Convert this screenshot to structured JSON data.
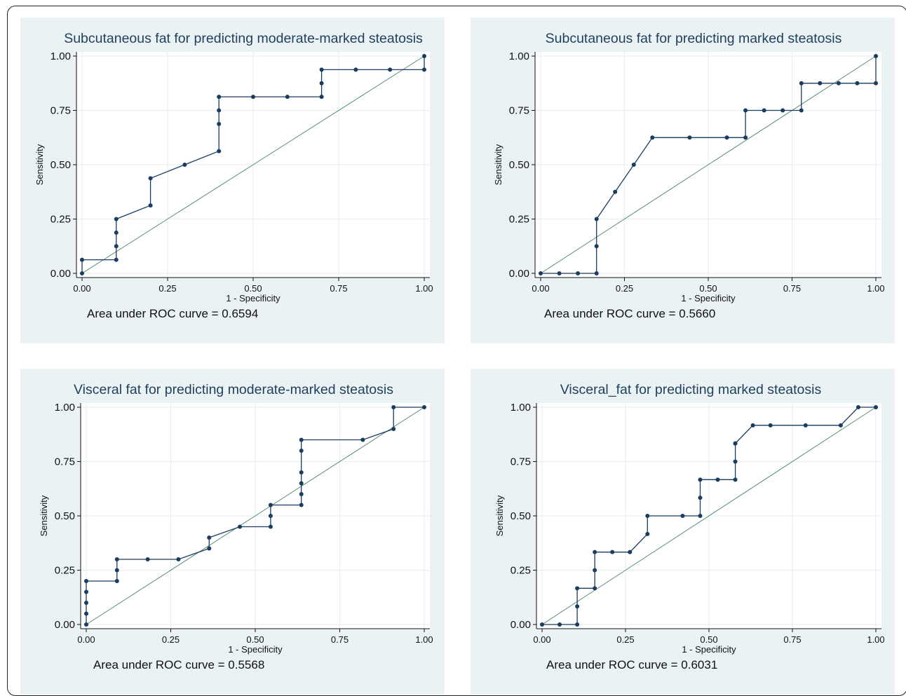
{
  "colors": {
    "panel_bg": "#eaf2f3",
    "plot_bg": "#ffffff",
    "curve": "#1a3c5e",
    "reference_line": "#5a8f74",
    "title": "#1f3f5e",
    "grid": "#e6eef0"
  },
  "chart_data": [
    {
      "type": "line",
      "title": "Subcutaneous fat for predicting moderate-marked steatosis",
      "xlabel": "1 - Specificity",
      "ylabel": "Sensitivity",
      "xlim": [
        0,
        1
      ],
      "ylim": [
        0,
        1
      ],
      "x_ticks": [
        "0.00",
        "0.25",
        "0.50",
        "0.75",
        "1.00"
      ],
      "y_ticks": [
        "0.00",
        "0.25",
        "0.50",
        "0.75",
        "1.00"
      ],
      "grid": true,
      "reference_line": true,
      "note": "Area under ROC curve = 0.6594",
      "series": [
        {
          "x": [
            0,
            0,
            0.1,
            0.1,
            0.1,
            0.1,
            0.2,
            0.2,
            0.3,
            0.4,
            0.4,
            0.4,
            0.4,
            0.5,
            0.6,
            0.7,
            0.7,
            0.7,
            0.8,
            0.9,
            1.0,
            1.0
          ],
          "y": [
            0,
            0.0625,
            0.0625,
            0.125,
            0.1875,
            0.25,
            0.3125,
            0.4375,
            0.5,
            0.5625,
            0.6875,
            0.75,
            0.8125,
            0.8125,
            0.8125,
            0.8125,
            0.875,
            0.9375,
            0.9375,
            0.9375,
            0.9375,
            1.0
          ]
        }
      ]
    },
    {
      "type": "line",
      "title": "Subcutaneous fat for predicting marked steatosis",
      "xlabel": "1 - Specificity",
      "ylabel": "Sensitivity",
      "xlim": [
        0,
        1
      ],
      "ylim": [
        0,
        1
      ],
      "x_ticks": [
        "0.00",
        "0.25",
        "0.50",
        "0.75",
        "1.00"
      ],
      "y_ticks": [
        "0.00",
        "0.25",
        "0.50",
        "0.75",
        "1.00"
      ],
      "grid": true,
      "reference_line": true,
      "note": "Area under ROC curve = 0.5660",
      "series": [
        {
          "x": [
            0,
            0.0556,
            0.1111,
            0.1667,
            0.1667,
            0.1667,
            0.2222,
            0.2778,
            0.3333,
            0.4444,
            0.5556,
            0.6111,
            0.6111,
            0.6667,
            0.7222,
            0.7778,
            0.7778,
            0.8333,
            0.8889,
            0.9444,
            1.0,
            1.0
          ],
          "y": [
            0,
            0,
            0,
            0,
            0.125,
            0.25,
            0.375,
            0.5,
            0.625,
            0.625,
            0.625,
            0.625,
            0.75,
            0.75,
            0.75,
            0.75,
            0.875,
            0.875,
            0.875,
            0.875,
            0.875,
            1.0
          ]
        }
      ]
    },
    {
      "type": "line",
      "title": "Visceral fat for predicting moderate-marked steatosis",
      "xlabel": "1 - Specificity",
      "ylabel": "Sensitivity",
      "xlim": [
        0,
        1
      ],
      "ylim": [
        0,
        1
      ],
      "x_ticks": [
        "0.00",
        "0.25",
        "0.50",
        "0.75",
        "1.00"
      ],
      "y_ticks": [
        "0.00",
        "0.25",
        "0.50",
        "0.75",
        "1.00"
      ],
      "grid": true,
      "reference_line": true,
      "note": "Area under ROC curve = 0.5568",
      "series": [
        {
          "x": [
            0,
            0,
            0,
            0,
            0,
            0.0909,
            0.0909,
            0.0909,
            0.1818,
            0.2727,
            0.3636,
            0.3636,
            0.4545,
            0.5455,
            0.5455,
            0.5455,
            0.6364,
            0.6364,
            0.6364,
            0.6364,
            0.6364,
            0.6364,
            0.8182,
            0.9091,
            0.9091,
            1.0
          ],
          "y": [
            0,
            0.05,
            0.1,
            0.15,
            0.2,
            0.2,
            0.25,
            0.3,
            0.3,
            0.3,
            0.35,
            0.4,
            0.45,
            0.45,
            0.5,
            0.55,
            0.55,
            0.6,
            0.65,
            0.7,
            0.8,
            0.85,
            0.85,
            0.9,
            1.0,
            1.0
          ]
        }
      ]
    },
    {
      "type": "line",
      "title": "Visceral_fat for predicting marked steatosis",
      "xlabel": "1 - Specificity",
      "ylabel": "Sensitivity",
      "xlim": [
        0,
        1
      ],
      "ylim": [
        0,
        1
      ],
      "x_ticks": [
        "0.00",
        "0.25",
        "0.50",
        "0.75",
        "1.00"
      ],
      "y_ticks": [
        "0.00",
        "0.25",
        "0.50",
        "0.75",
        "1.00"
      ],
      "grid": true,
      "reference_line": true,
      "note": "Area under ROC curve = 0.6031",
      "series": [
        {
          "x": [
            0,
            0.0526,
            0.1053,
            0.1053,
            0.1053,
            0.1579,
            0.1579,
            0.1579,
            0.2105,
            0.2632,
            0.3158,
            0.3158,
            0.4211,
            0.4737,
            0.4737,
            0.4737,
            0.5263,
            0.5789,
            0.5789,
            0.5789,
            0.5789,
            0.6316,
            0.6842,
            0.7895,
            0.8947,
            0.9474,
            1.0
          ],
          "y": [
            0,
            0,
            0,
            0.0833,
            0.1667,
            0.1667,
            0.25,
            0.3333,
            0.3333,
            0.3333,
            0.4167,
            0.5,
            0.5,
            0.5,
            0.5833,
            0.6667,
            0.6667,
            0.6667,
            0.75,
            0.8333,
            0.8333,
            0.9167,
            0.9167,
            0.9167,
            0.9167,
            1.0,
            1.0
          ]
        }
      ]
    }
  ]
}
